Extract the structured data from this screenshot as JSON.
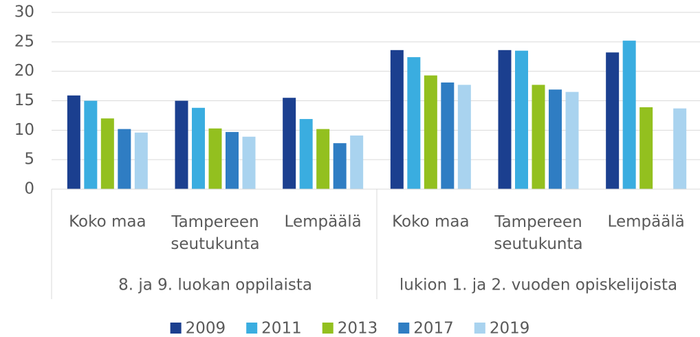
{
  "chart_data": {
    "type": "bar",
    "groups": [
      "8. ja 9. luokan oppilaista",
      "lukion 1. ja 2. vuoden opiskelijoista"
    ],
    "categories": [
      "Koko maa",
      "Tampereen seutukunta",
      "Lempäälä",
      "Koko maa",
      "Tampereen seutukunta",
      "Lempäälä"
    ],
    "series": [
      {
        "name": "2009",
        "color": "#1b3f8f",
        "values": [
          15.9,
          15.0,
          15.5,
          23.6,
          23.6,
          23.2
        ]
      },
      {
        "name": "2011",
        "color": "#3aade0",
        "values": [
          15.0,
          13.8,
          11.9,
          22.4,
          23.5,
          25.2
        ]
      },
      {
        "name": "2013",
        "color": "#93c01f",
        "values": [
          12.0,
          10.3,
          10.2,
          19.3,
          17.7,
          13.9
        ]
      },
      {
        "name": "2017",
        "color": "#2f7dc3",
        "values": [
          10.2,
          9.7,
          7.8,
          18.1,
          16.9,
          null
        ]
      },
      {
        "name": "2019",
        "color": "#a9d3ef",
        "values": [
          9.6,
          8.9,
          9.1,
          17.7,
          16.5,
          13.7
        ]
      }
    ],
    "ylim": [
      0,
      30
    ],
    "yticks": [
      0,
      5,
      10,
      15,
      20,
      25,
      30
    ],
    "grid": true,
    "legend": "bottom"
  }
}
